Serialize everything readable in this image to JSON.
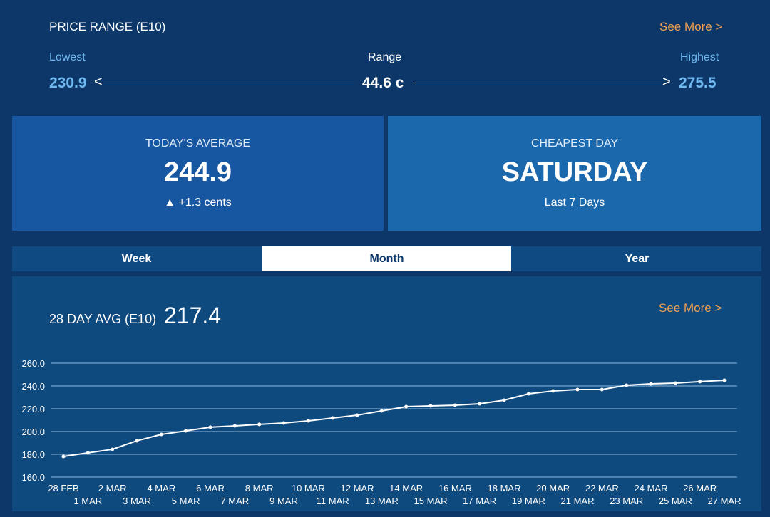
{
  "price_range": {
    "title": "PRICE RANGE (E10)",
    "see_more": "See More >",
    "lowest_label": "Lowest",
    "lowest": "230.9",
    "range_label": "Range",
    "range": "44.6 c",
    "highest_label": "Highest",
    "highest": "275.5"
  },
  "today": {
    "label": "TODAY'S AVERAGE",
    "value": "244.9",
    "change": "+1.3 cents"
  },
  "cheapest": {
    "label": "CHEAPEST DAY",
    "value": "SATURDAY",
    "sub": "Last 7 Days"
  },
  "tabs": [
    {
      "label": "Week"
    },
    {
      "label": "Month",
      "active": true
    },
    {
      "label": "Year"
    }
  ],
  "avg": {
    "label": "28 DAY AVG (E10)",
    "value": "217.4",
    "see_more": "See More >"
  },
  "colors": {
    "background": "#0c3768",
    "accent": "#f0a050",
    "highlight": "#6fb8f0"
  },
  "chart_data": {
    "type": "line",
    "grid": true,
    "ylim": [
      160,
      260
    ],
    "yticks": [
      "260.0",
      "240.0",
      "220.0",
      "200.0",
      "180.0",
      "160.0"
    ],
    "categories": [
      "28 FEB",
      "1 MAR",
      "2 MAR",
      "3 MAR",
      "4 MAR",
      "5 MAR",
      "6 MAR",
      "7 MAR",
      "8 MAR",
      "9 MAR",
      "10 MAR",
      "11 MAR",
      "12 MAR",
      "13 MAR",
      "14 MAR",
      "15 MAR",
      "16 MAR",
      "17 MAR",
      "18 MAR",
      "19 MAR",
      "20 MAR",
      "21 MAR",
      "22 MAR",
      "23 MAR",
      "24 MAR",
      "25 MAR",
      "26 MAR",
      "27 MAR"
    ],
    "values": [
      178.1,
      181.3,
      184.4,
      191.9,
      197.5,
      200.6,
      203.8,
      205,
      206.3,
      207.5,
      209.4,
      211.9,
      214.4,
      218.1,
      221.9,
      222.5,
      223.1,
      224.4,
      227.5,
      233.1,
      235.6,
      236.9,
      236.9,
      240.6,
      241.9,
      242.5,
      243.8,
      245
    ]
  }
}
